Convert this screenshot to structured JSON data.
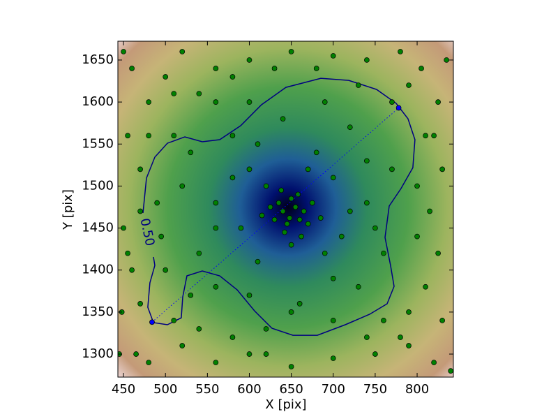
{
  "chart_data": {
    "type": "scatter",
    "xlabel": "X [pix]",
    "ylabel": "Y [pix]",
    "xlim": [
      443.3,
      843.2
    ],
    "ylim": [
      1272.6,
      1672.4
    ],
    "xticks": [
      450,
      500,
      550,
      600,
      650,
      700,
      750,
      800
    ],
    "yticks": [
      1300,
      1350,
      1400,
      1450,
      1500,
      1550,
      1600,
      1650
    ],
    "series": [
      {
        "color": "#008000",
        "x": [
          640,
          648,
          655,
          660,
          645,
          635,
          665,
          650,
          630,
          670,
          642,
          658,
          625,
          675,
          638,
          662,
          615,
          685,
          650,
          620,
          600,
          700,
          590,
          710,
          680,
          610,
          700,
          560,
          740,
          580,
          720,
          640,
          660,
          600,
          760,
          540,
          520,
          740,
          690,
          620,
          700,
          560,
          770,
          510,
          530,
          560,
          600,
          650,
          730,
          750,
          580,
          720,
          690,
          610,
          670,
          560,
          495,
          500,
          490,
          530,
          460,
          480,
          455,
          470,
          450,
          460,
          448,
          465,
          480,
          520,
          560,
          600,
          650,
          700,
          750,
          790,
          820,
          830,
          810,
          825,
          815,
          830,
          810,
          825,
          805,
          780,
          740,
          700,
          650,
          600,
          560,
          520,
          500,
          540,
          790,
          800,
          800,
          790,
          780,
          740,
          620,
          540,
          470,
          455,
          470,
          480,
          510,
          580,
          630,
          680,
          730,
          770,
          820,
          835,
          450,
          445,
          840,
          760,
          510,
          580
        ],
        "y": [
          1470,
          1462,
          1475,
          1460,
          1455,
          1480,
          1470,
          1485,
          1460,
          1455,
          1445,
          1490,
          1475,
          1480,
          1495,
          1440,
          1465,
          1462,
          1430,
          1500,
          1520,
          1510,
          1450,
          1440,
          1540,
          1410,
          1390,
          1480,
          1480,
          1560,
          1570,
          1580,
          1360,
          1370,
          1420,
          1420,
          1500,
          1530,
          1600,
          1330,
          1340,
          1450,
          1520,
          1560,
          1370,
          1600,
          1600,
          1350,
          1380,
          1450,
          1510,
          1470,
          1420,
          1550,
          1520,
          1380,
          1440,
          1400,
          1480,
          1540,
          1640,
          1600,
          1560,
          1520,
          1450,
          1400,
          1350,
          1300,
          1290,
          1310,
          1290,
          1300,
          1285,
          1295,
          1300,
          1310,
          1290,
          1340,
          1380,
          1420,
          1470,
          1520,
          1560,
          1600,
          1640,
          1660,
          1650,
          1655,
          1660,
          1650,
          1640,
          1660,
          1630,
          1610,
          1620,
          1500,
          1440,
          1350,
          1320,
          1320,
          1300,
          1330,
          1360,
          1420,
          1470,
          1560,
          1610,
          1630,
          1640,
          1640,
          1620,
          1600,
          1560,
          1650,
          1660,
          1300,
          1280,
          1340,
          1340,
          1320
        ]
      },
      {
        "color": "#0000ff",
        "x": [
          484,
          778
        ],
        "y": [
          1338,
          1593
        ]
      }
    ],
    "contour": {
      "color": "#000080",
      "level": {
        "value": 0.5,
        "label": "0.50"
      },
      "x": [
        473.2,
        477.4,
        487.4,
        502.3,
        523.1,
        543.9,
        564.7,
        589.6,
        614.5,
        643.6,
        685.2,
        718.5,
        751.7,
        775.0,
        789.1,
        797.4,
        794.9,
        780.8,
        766.7,
        761.7,
        768.3,
        772.5,
        764.2,
        743.4,
        714.3,
        681.1,
        651.9,
        627.0,
        606.2,
        585.5,
        564.7,
        543.9,
        525.6,
        520.6,
        518.9,
        502.3,
        485.7,
        479.0,
        481.5,
        487.4,
        485.7
      ],
      "y": [
        1467.9,
        1509.5,
        1534.4,
        1551.0,
        1558.5,
        1552.7,
        1555.2,
        1571.8,
        1596.8,
        1617.5,
        1628.3,
        1625.8,
        1615.0,
        1598.4,
        1580.1,
        1555.2,
        1521.9,
        1497.0,
        1476.2,
        1438.8,
        1405.6,
        1380.6,
        1359.9,
        1347.4,
        1334.9,
        1322.4,
        1322.4,
        1330.7,
        1351.5,
        1376.5,
        1393.1,
        1398.9,
        1393.1,
        1368.1,
        1343.2,
        1334.9,
        1337.4,
        1355.7,
        1384.8,
        1405.6,
        1415.6
      ]
    }
  }
}
